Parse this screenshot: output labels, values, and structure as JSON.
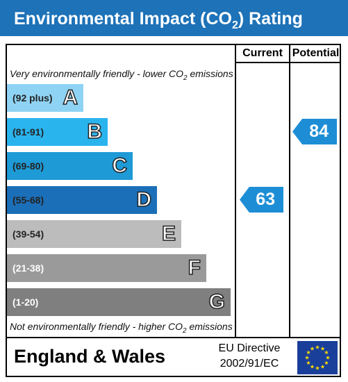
{
  "header": {
    "title_pre": "Environmental Impact (CO",
    "title_sub": "2",
    "title_post": ") Rating"
  },
  "columns": {
    "current": "Current",
    "potential": "Potential"
  },
  "top_note": {
    "pre": "Very environmentally friendly - lower CO",
    "sub": "2",
    "post": " emissions"
  },
  "bottom_note": {
    "pre": "Not environmentally friendly - higher CO",
    "sub": "2",
    "post": " emissions"
  },
  "footer": {
    "region": "England & Wales",
    "directive_line1": "EU Directive",
    "directive_line2": "2002/91/EC",
    "flag_icon": "eu-flag-icon"
  },
  "chart_data": {
    "type": "bar",
    "categories": [
      "A",
      "B",
      "C",
      "D",
      "E",
      "F",
      "G"
    ],
    "bands": [
      {
        "letter": "A",
        "range": "(92 plus)",
        "color": "#8fd3f4",
        "text_color": "#222222"
      },
      {
        "letter": "B",
        "range": "(81-91)",
        "color": "#2ab4ee",
        "text_color": "#222222"
      },
      {
        "letter": "C",
        "range": "(69-80)",
        "color": "#1e9ad6",
        "text_color": "#222222"
      },
      {
        "letter": "D",
        "range": "(55-68)",
        "color": "#1b6fb8",
        "text_color": "#222222"
      },
      {
        "letter": "E",
        "range": "(39-54)",
        "color": "#bcbcbc",
        "text_color": "#222222"
      },
      {
        "letter": "F",
        "range": "(21-38)",
        "color": "#9a9a9a",
        "text_color": "#ffffff"
      },
      {
        "letter": "G",
        "range": "(1-20)",
        "color": "#7f7f7f",
        "text_color": "#ffffff"
      }
    ],
    "current": {
      "value": 63,
      "band": "D",
      "color": "#1d8ed6"
    },
    "potential": {
      "value": 84,
      "band": "B",
      "color": "#1d8ed6"
    }
  }
}
